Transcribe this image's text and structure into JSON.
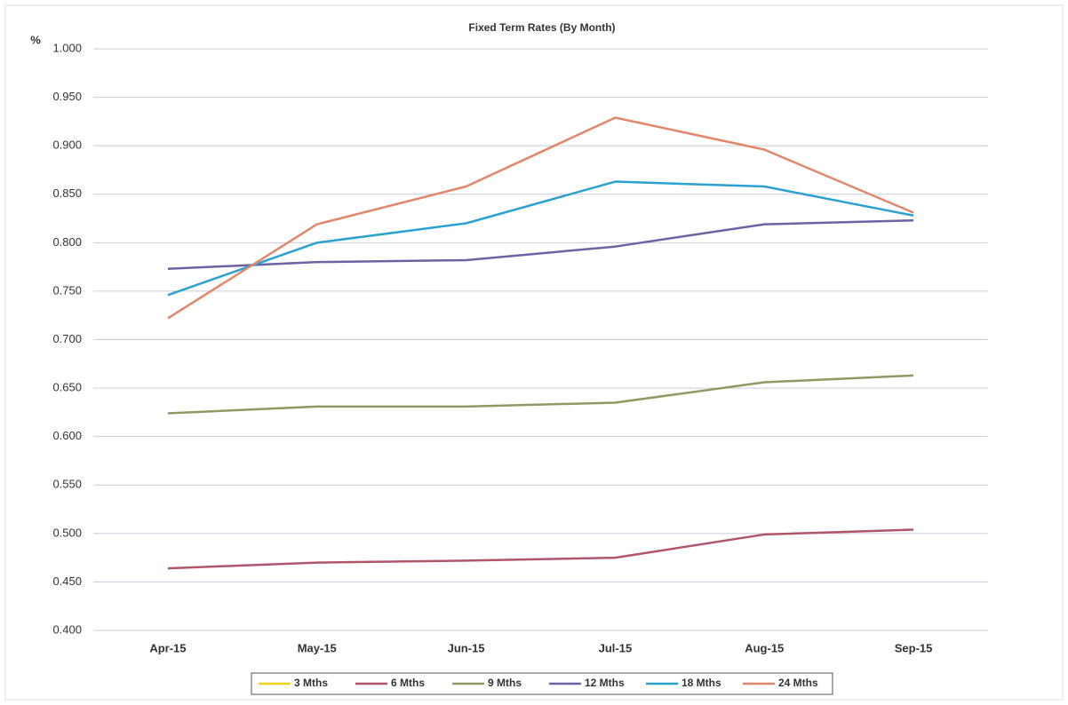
{
  "chart_data": {
    "type": "line",
    "title": "Fixed Term Rates (By Month)",
    "y_label": "%",
    "categories": [
      "Apr-15",
      "May-15",
      "Jun-15",
      "Jul-15",
      "Aug-15",
      "Sep-15"
    ],
    "series": [
      {
        "name": "3 Mths",
        "color": "#f2d31b",
        "values": [
          null,
          null,
          null,
          null,
          null,
          null
        ]
      },
      {
        "name": "6 Mths",
        "color": "#b1566a",
        "values": [
          0.464,
          0.47,
          0.472,
          0.475,
          0.499,
          0.504
        ]
      },
      {
        "name": "9 Mths",
        "color": "#8f9a63",
        "values": [
          0.624,
          0.631,
          0.631,
          0.635,
          0.656,
          0.663
        ]
      },
      {
        "name": "12 Mths",
        "color": "#6b63a3",
        "values": [
          0.773,
          0.78,
          0.782,
          0.796,
          0.819,
          0.823
        ]
      },
      {
        "name": "18 Mths",
        "color": "#2aa1cf",
        "values": [
          0.746,
          0.8,
          0.82,
          0.863,
          0.858,
          0.828
        ]
      },
      {
        "name": "24 Mths",
        "color": "#e2876a",
        "values": [
          0.722,
          0.819,
          0.858,
          0.929,
          0.896,
          0.831
        ]
      }
    ],
    "ylim": [
      0.4,
      1.0
    ],
    "yticks": [
      {
        "value": 0.4,
        "label": "0.400"
      },
      {
        "value": 0.45,
        "label": "0.450"
      },
      {
        "value": 0.5,
        "label": "0.500"
      },
      {
        "value": 0.55,
        "label": "0.550"
      },
      {
        "value": 0.6,
        "label": "0.600"
      },
      {
        "value": 0.65,
        "label": "0.650"
      },
      {
        "value": 0.7,
        "label": "0.700"
      },
      {
        "value": 0.75,
        "label": "0.750"
      },
      {
        "value": 0.8,
        "label": "0.800"
      },
      {
        "value": 0.85,
        "label": "0.850"
      },
      {
        "value": 0.9,
        "label": "0.900"
      },
      {
        "value": 0.95,
        "label": "0.950"
      },
      {
        "value": 1.0,
        "label": "1.000"
      }
    ],
    "grid": true,
    "legend": "bottom"
  }
}
